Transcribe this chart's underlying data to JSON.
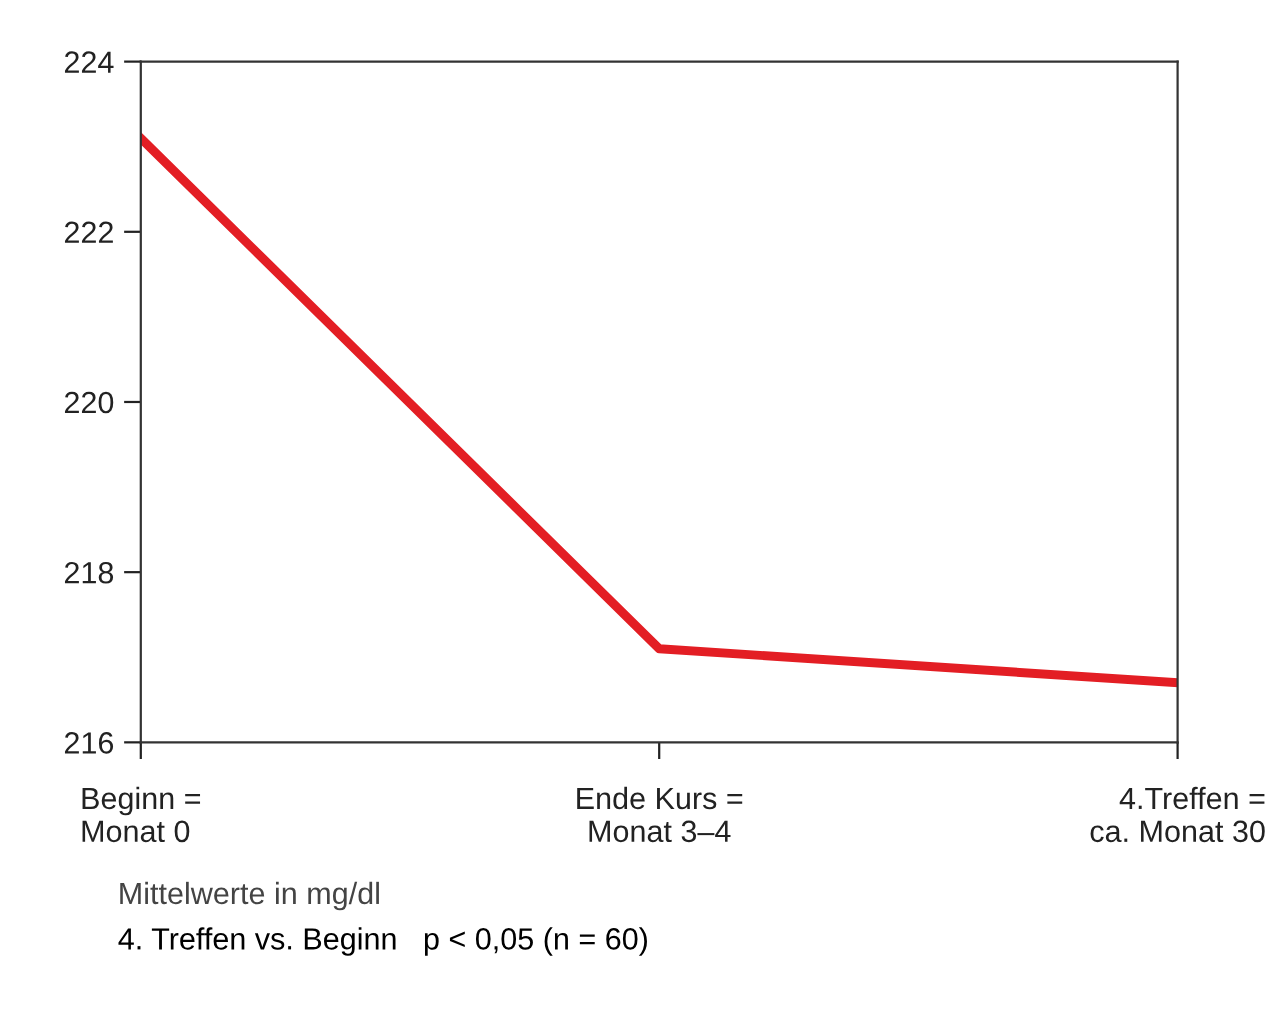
{
  "chart_data": {
    "type": "line",
    "categories": [
      "Beginn =\nMonat 0",
      "Ende Kurs =\nMonat 3–4",
      "4.Treffen =\nca. Monat 30"
    ],
    "series": [
      {
        "color": "#e31e24",
        "values": [
          223.1,
          217.1,
          216.7
        ]
      }
    ],
    "ylim": [
      216,
      224
    ],
    "yticks": [
      216,
      218,
      220,
      222,
      224
    ],
    "grid": false,
    "marker": "none",
    "line_style": "solid",
    "annotations": [
      "Mittelwerte in mg/dl",
      "4. Treffen vs. Beginn   p < 0,05 (n = 60)"
    ]
  }
}
